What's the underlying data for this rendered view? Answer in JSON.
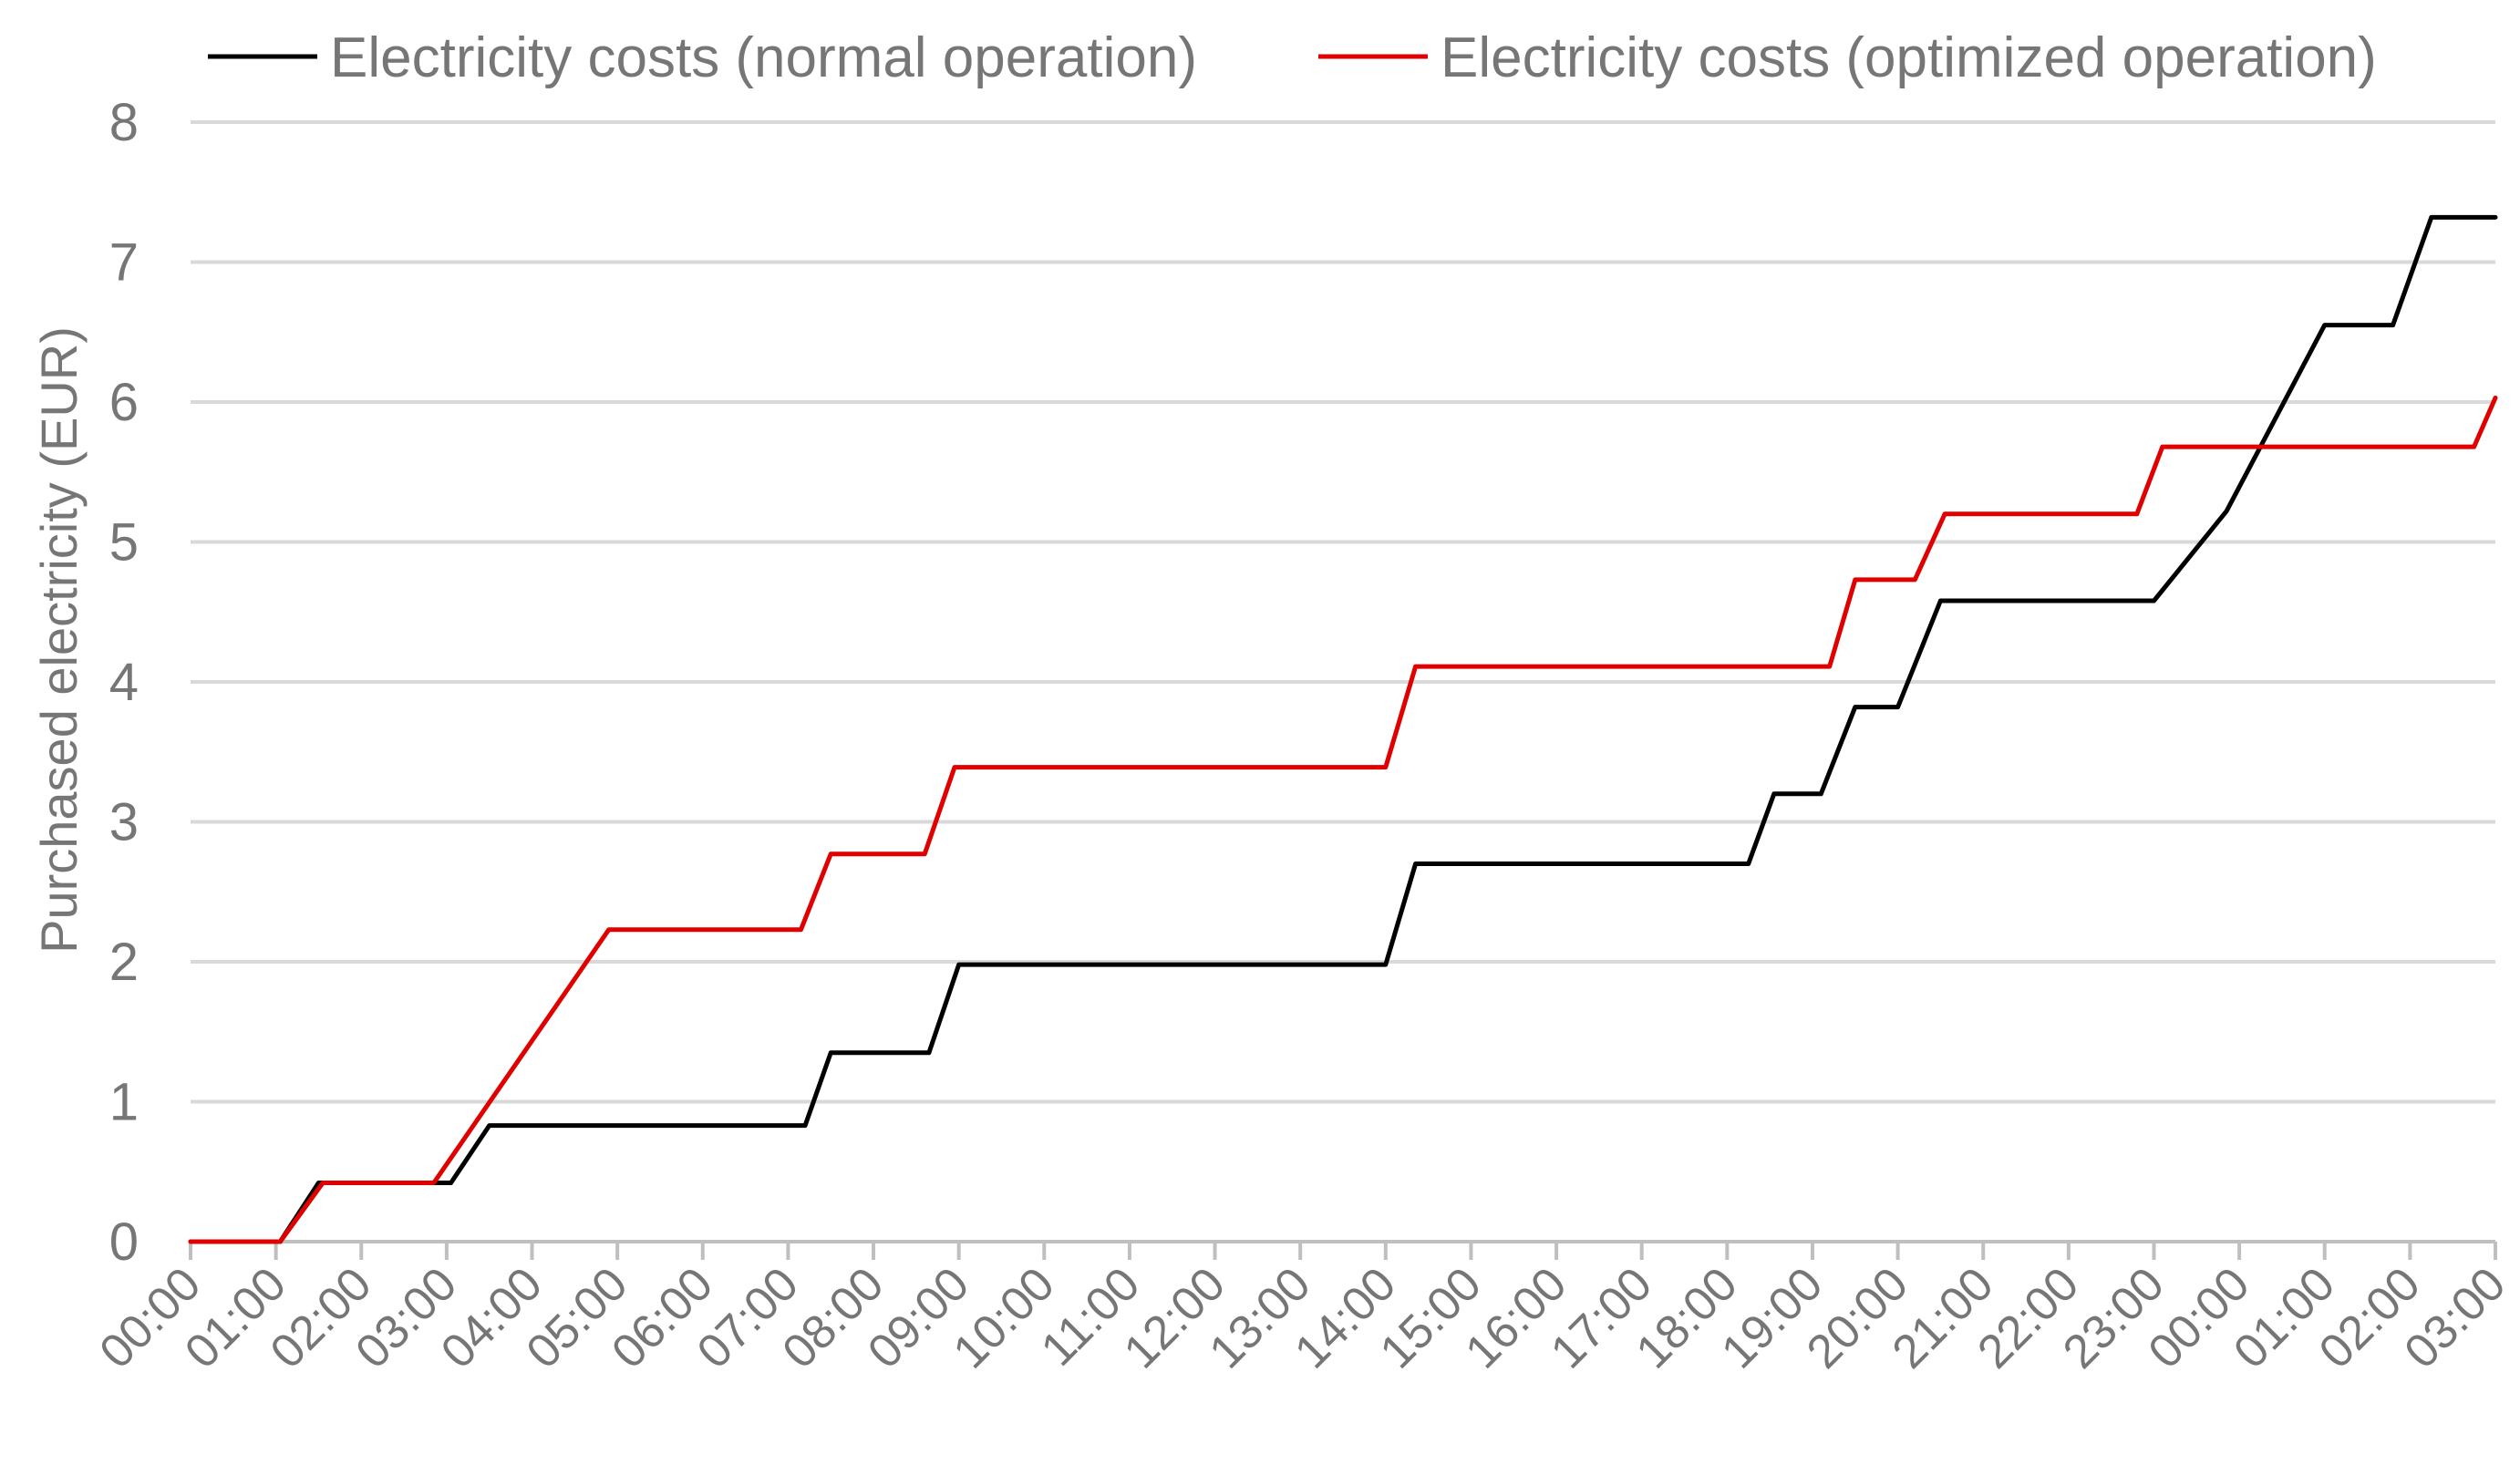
{
  "chart_data": {
    "type": "line",
    "title": "",
    "xlabel": "",
    "ylabel": "Purchased electricity (EUR)",
    "ylim": [
      0,
      8
    ],
    "yticks": [
      "0",
      "1",
      "2",
      "3",
      "4",
      "5",
      "6",
      "7",
      "8"
    ],
    "xlim": [
      0,
      27
    ],
    "xticks": [
      "00:00",
      "01:00",
      "02:00",
      "03:00",
      "04:00",
      "05:00",
      "06:00",
      "07:00",
      "08:00",
      "09:00",
      "10:00",
      "11:00",
      "12:00",
      "13:00",
      "14:00",
      "15:00",
      "16:00",
      "17:00",
      "18:00",
      "19:00",
      "20:00",
      "21:00",
      "22:00",
      "23:00",
      "00:00",
      "01:00",
      "02:00",
      "03:00"
    ],
    "grid": true,
    "legend_position": "top",
    "series": [
      {
        "name": "Electricity costs (normal operation)",
        "color": "#000000",
        "x": [
          0,
          1.05,
          1.5,
          3.05,
          3.5,
          7.2,
          7.5,
          8.65,
          9.0,
          14.0,
          14.35,
          18.25,
          18.55,
          19.1,
          19.5,
          20.0,
          20.5,
          23.0,
          23.85,
          25.0,
          25.8,
          26.25,
          27.0
        ],
        "values": [
          0,
          0,
          0.42,
          0.42,
          0.83,
          0.83,
          1.35,
          1.35,
          1.98,
          1.98,
          2.7,
          2.7,
          3.2,
          3.2,
          3.82,
          3.82,
          4.58,
          4.58,
          5.22,
          6.55,
          6.55,
          7.32,
          7.32
        ]
      },
      {
        "name": "Electricity costs (optimized operation)",
        "color": "#e00000",
        "x": [
          0,
          1.05,
          1.55,
          2.85,
          4.9,
          7.15,
          7.5,
          8.6,
          8.95,
          14.0,
          14.35,
          19.2,
          19.5,
          20.2,
          20.55,
          22.8,
          23.1,
          26.75,
          27.0
        ],
        "values": [
          0,
          0,
          0.42,
          0.42,
          2.23,
          2.23,
          2.77,
          2.77,
          3.39,
          3.39,
          4.11,
          4.11,
          4.73,
          4.73,
          5.2,
          5.2,
          5.68,
          5.68,
          6.03
        ]
      }
    ]
  }
}
